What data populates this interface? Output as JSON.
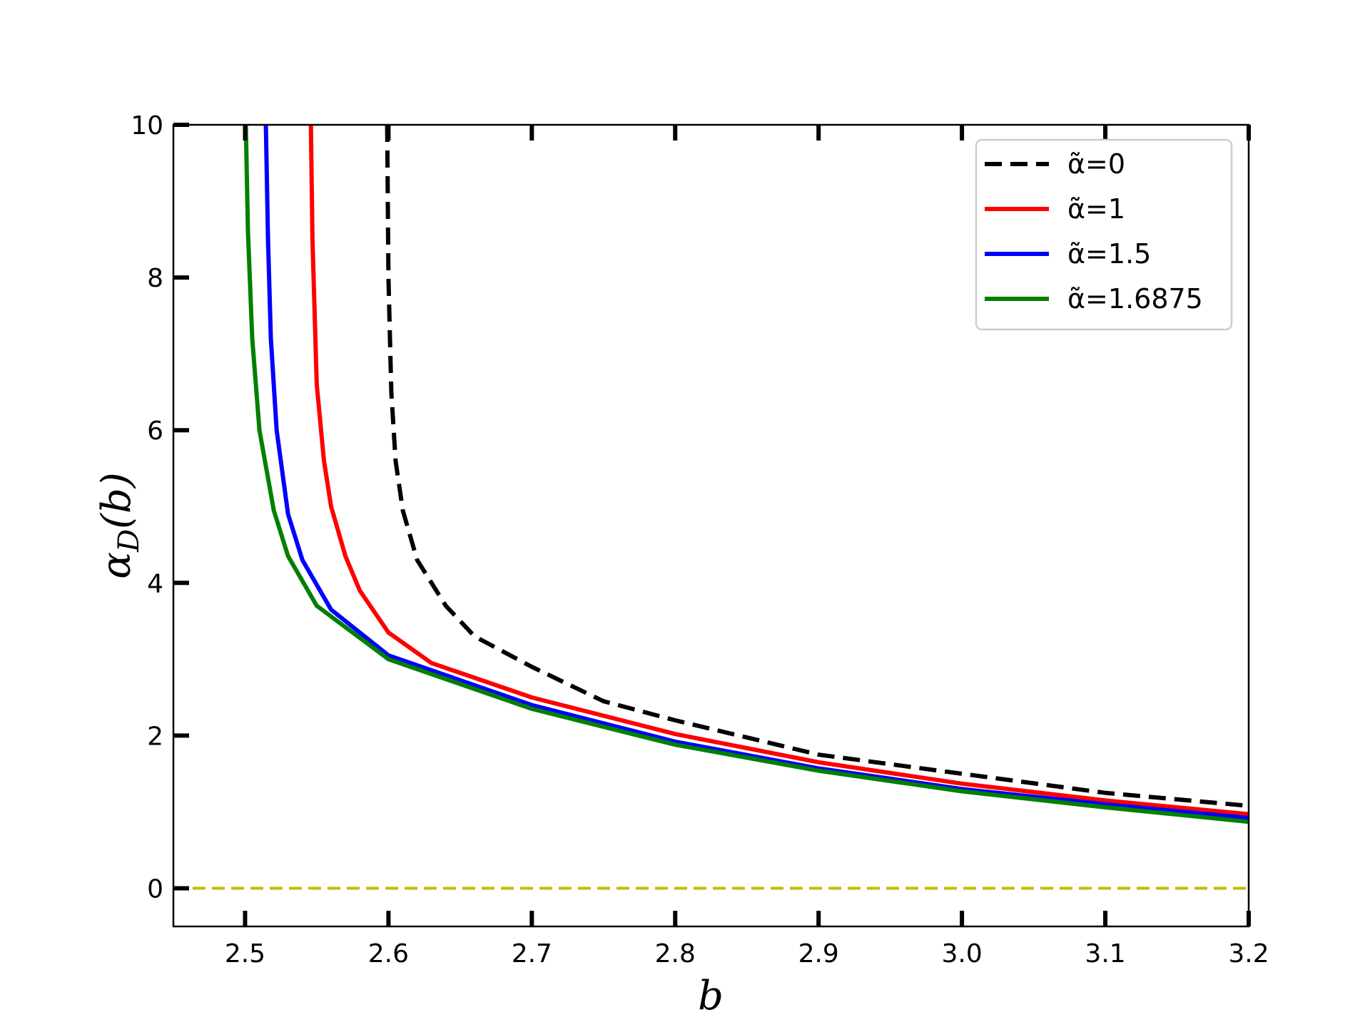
{
  "chart_data": {
    "type": "line",
    "title": "",
    "xlabel": "b",
    "ylabel": "α_D(b)",
    "xlim": [
      2.45,
      3.2
    ],
    "ylim": [
      -0.5,
      10
    ],
    "x_ticks": [
      "2.5",
      "2.6",
      "2.7",
      "2.8",
      "2.9",
      "3.0",
      "3.1",
      "3.2"
    ],
    "x_tick_values": [
      2.5,
      2.6,
      2.7,
      2.8,
      2.9,
      3.0,
      3.1,
      3.2
    ],
    "y_ticks": [
      "0",
      "2",
      "4",
      "6",
      "8",
      "10"
    ],
    "y_tick_values": [
      0,
      2,
      4,
      6,
      8,
      10
    ],
    "grid": false,
    "legend_position": "top-right",
    "series": [
      {
        "name": "α̃=0",
        "color": "#000000",
        "style": "dashed",
        "x": [
          2.5991,
          2.6,
          2.602,
          2.605,
          2.61,
          2.62,
          2.64,
          2.66,
          2.7,
          2.75,
          2.8,
          2.9,
          3.0,
          3.1,
          3.2
        ],
        "y": [
          10,
          8.0,
          6.5,
          5.6,
          4.95,
          4.3,
          3.7,
          3.3,
          2.9,
          2.45,
          2.2,
          1.75,
          1.5,
          1.25,
          1.08
        ]
      },
      {
        "name": "α̃=1",
        "color": "#ff0000",
        "style": "solid",
        "x": [
          2.5459,
          2.547,
          2.55,
          2.555,
          2.56,
          2.57,
          2.58,
          2.6,
          2.63,
          2.7,
          2.8,
          2.9,
          3.0,
          3.1,
          3.2
        ],
        "y": [
          10,
          8.5,
          6.6,
          5.6,
          5.0,
          4.35,
          3.9,
          3.35,
          2.95,
          2.5,
          2.02,
          1.65,
          1.37,
          1.15,
          0.97
        ]
      },
      {
        "name": "α̃=1.5",
        "color": "#0000ff",
        "style": "solid",
        "x": [
          2.5145,
          2.516,
          2.518,
          2.522,
          2.53,
          2.54,
          2.56,
          2.6,
          2.7,
          2.8,
          2.9,
          3.0,
          3.1,
          3.2
        ],
        "y": [
          10,
          8.5,
          7.2,
          6.0,
          4.9,
          4.3,
          3.65,
          3.05,
          2.4,
          1.92,
          1.57,
          1.3,
          1.1,
          0.92
        ]
      },
      {
        "name": "α̃=1.6875",
        "color": "#008000",
        "style": "solid",
        "x": [
          2.5005,
          2.502,
          2.505,
          2.51,
          2.52,
          2.53,
          2.55,
          2.6,
          2.7,
          2.8,
          2.9,
          3.0,
          3.1,
          3.2
        ],
        "y": [
          10,
          8.6,
          7.2,
          6.0,
          4.95,
          4.35,
          3.7,
          3.0,
          2.35,
          1.88,
          1.54,
          1.27,
          1.06,
          0.87
        ]
      },
      {
        "name": "",
        "color": "#bfbf00",
        "style": "dashed",
        "x": [
          2.45,
          3.2
        ],
        "y": [
          0,
          0
        ]
      }
    ]
  }
}
